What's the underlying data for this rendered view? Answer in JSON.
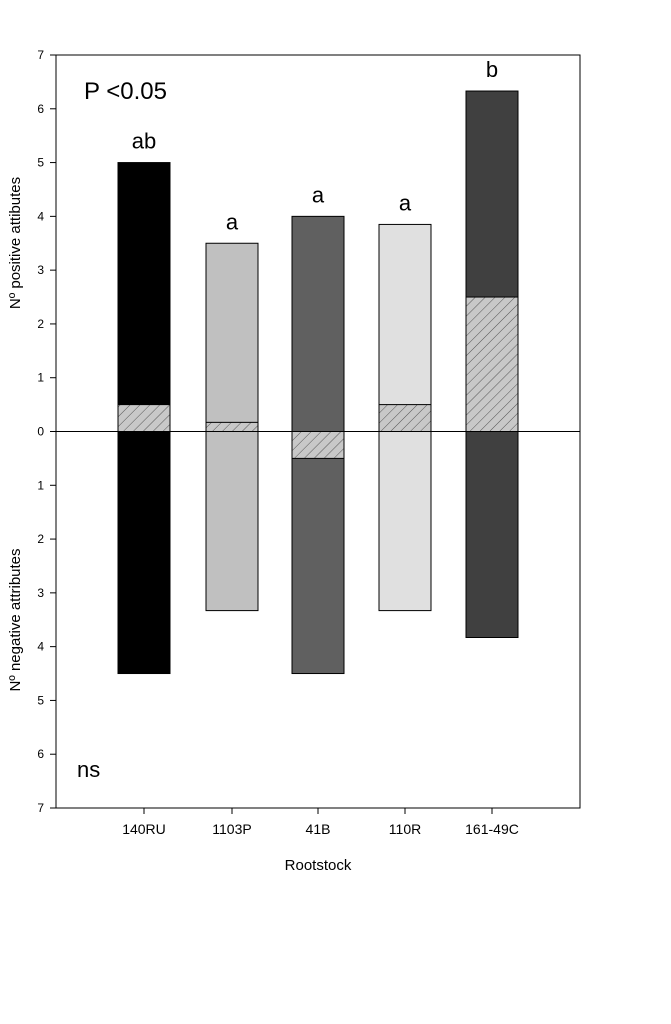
{
  "chart_data": {
    "type": "bar",
    "stat_top": "P <0.05",
    "stat_bottom": "ns",
    "xlabel": "Rootstock",
    "ylabel_top": "Nº positive attibutes",
    "ylabel_bottom": "Nº negative attributes",
    "ylim": [
      -7,
      7
    ],
    "yticks": [
      {
        "value": 7,
        "label": "7"
      },
      {
        "value": 6,
        "label": "6"
      },
      {
        "value": 5,
        "label": "5"
      },
      {
        "value": 4,
        "label": "4"
      },
      {
        "value": 3,
        "label": "3"
      },
      {
        "value": 2,
        "label": "2"
      },
      {
        "value": 1,
        "label": "1"
      },
      {
        "value": 0,
        "label": "0"
      },
      {
        "value": -1,
        "label": "1"
      },
      {
        "value": -2,
        "label": "2"
      },
      {
        "value": -3,
        "label": "3"
      },
      {
        "value": -4,
        "label": "4"
      },
      {
        "value": -5,
        "label": "5"
      },
      {
        "value": -6,
        "label": "6"
      },
      {
        "value": -7,
        "label": "7"
      }
    ],
    "categories": [
      "140RU",
      "1103P",
      "41B",
      "110R",
      "161-49C"
    ],
    "colors": [
      "#000000",
      "#c0c0c0",
      "#606060",
      "#e0e0e0",
      "#404040"
    ],
    "positive": [
      5.0,
      3.5,
      4.0,
      3.85,
      6.33
    ],
    "negative": [
      4.5,
      3.33,
      4.5,
      3.33,
      3.83
    ],
    "net": [
      0.5,
      0.17,
      -0.5,
      0.5,
      2.5
    ],
    "letters": [
      "ab",
      "a",
      "a",
      "a",
      "b"
    ],
    "grid": false
  }
}
